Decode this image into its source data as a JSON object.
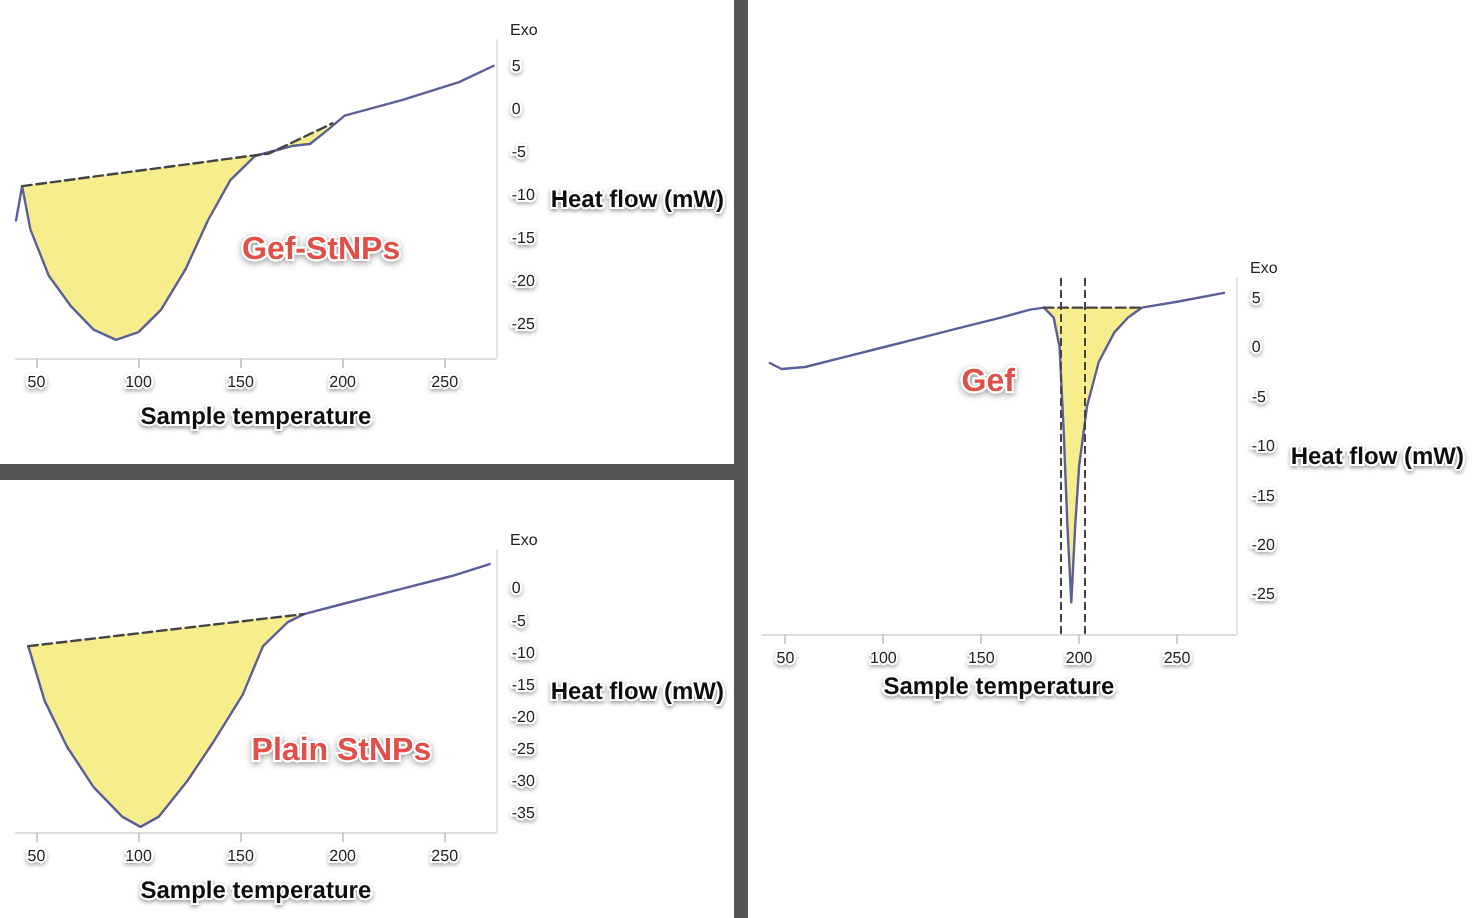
{
  "chart_data": [
    {
      "type": "line",
      "title": "Gef-StNPs",
      "xlabel": "Sample temperature",
      "ylabel": "Heat flow (mW)",
      "annotations": [
        "Exo"
      ],
      "xlim": [
        40,
        275
      ],
      "ylim": [
        -29,
        8
      ],
      "xticks": [
        50,
        100,
        150,
        200,
        250
      ],
      "yticks": [
        5,
        0,
        -5,
        -10,
        -15,
        -20,
        -25
      ],
      "marker": "none",
      "grid": false,
      "series": [
        {
          "color": "#5a5f9a",
          "x": [
            40,
            43,
            47,
            56,
            67,
            78,
            89,
            100,
            111,
            123,
            134,
            145,
            157,
            168,
            176,
            184,
            193,
            201,
            229,
            257,
            274
          ],
          "values": [
            -13,
            -9,
            -14,
            -19.4,
            -23,
            -25.7,
            -26.9,
            -26,
            -23.4,
            -18.7,
            -13,
            -8.3,
            -5.5,
            -4.8,
            -4.3,
            -4.1,
            -2.4,
            -0.8,
            1,
            3.1,
            5
          ],
          "lower": [
            null,
            -9,
            -14,
            -19.4,
            -23,
            -25.7,
            -26.9,
            -26,
            -23.4,
            -18.7,
            -13,
            -8.3,
            -5.5,
            -4.8,
            -4.3,
            -4.1,
            -2.4,
            null,
            null,
            null,
            null
          ],
          "upper": [
            null,
            -9,
            -8.9,
            -8.6,
            -8.2,
            -7.9,
            -7.6,
            -7.2,
            -6.9,
            -6.5,
            -6.1,
            -5.8,
            -5.4,
            -4.7,
            -3.8,
            -2.9,
            -1.9,
            null,
            null,
            null,
            null
          ]
        },
        {
          "color": "#444444",
          "line_style": "dashed",
          "x": [
            43,
            164,
            195
          ],
          "values": [
            -9,
            -5.2,
            -1.7
          ]
        }
      ]
    },
    {
      "type": "line",
      "title": "Plain StNPs",
      "xlabel": "Sample temperature",
      "ylabel": "Heat flow (mW)",
      "annotations": [
        "Exo"
      ],
      "xlim": [
        40,
        275
      ],
      "ylim": [
        -38,
        6
      ],
      "xticks": [
        50,
        100,
        150,
        200,
        250
      ],
      "yticks": [
        0,
        -5,
        -10,
        -15,
        -20,
        -25,
        -30,
        -35
      ],
      "marker": "none",
      "grid": false,
      "series": [
        {
          "color": "#5a5f9a",
          "x": [
            46,
            54,
            65,
            78,
            92,
            101,
            110,
            124,
            137,
            151,
            161,
            173,
            181,
            199,
            226,
            253,
            272
          ],
          "values": [
            -9,
            -17.5,
            -24.7,
            -31,
            -35.6,
            -37.2,
            -35.6,
            -30,
            -23.8,
            -16.6,
            -9,
            -5.3,
            -4,
            -2.5,
            -0.3,
            1.9,
            3.8
          ],
          "lower": [
            -9,
            -17.5,
            -24.7,
            -31,
            -35.6,
            -37.2,
            -35.6,
            -30,
            -23.8,
            -16.6,
            -9,
            -5.3,
            -4,
            null,
            null,
            null,
            null
          ],
          "upper": [
            -9,
            -8.7,
            -8.3,
            -7.8,
            -7.3,
            -7,
            -6.6,
            -6.1,
            -5.6,
            -5.1,
            -4.7,
            -4.3,
            -4,
            null,
            null,
            null,
            null
          ]
        },
        {
          "color": "#444444",
          "line_style": "dashed",
          "x": [
            46,
            181
          ],
          "values": [
            -9,
            -4
          ]
        }
      ]
    },
    {
      "type": "line",
      "title": "Gef",
      "xlabel": "Sample temperature",
      "ylabel": "Heat flow (mW)",
      "annotations": [
        "Exo"
      ],
      "xlim": [
        38,
        280
      ],
      "ylim": [
        -29,
        7
      ],
      "xticks": [
        50,
        100,
        150,
        200,
        250
      ],
      "yticks": [
        5,
        0,
        -5,
        -10,
        -15,
        -20,
        -25
      ],
      "marker": "none",
      "grid": false,
      "ref_lines": [
        {
          "axis": "x",
          "value": 190,
          "color": "#444444",
          "line_style": "dashed"
        },
        {
          "axis": "x",
          "value": 203,
          "color": "#444444",
          "line_style": "dashed"
        }
      ],
      "series": [
        {
          "color": "#5a5f9a",
          "x": [
            42,
            48,
            60,
            80,
            100,
            120,
            140,
            160,
            175,
            182,
            187,
            190,
            192,
            194,
            196,
            198,
            200,
            204,
            210,
            218,
            225,
            232,
            250,
            274
          ],
          "values": [
            -1.6,
            -2.2,
            -2,
            -1,
            0,
            1,
            2,
            3,
            3.8,
            4,
            3,
            0,
            -8,
            -18,
            -25.8,
            -18,
            -12,
            -6,
            -1.5,
            1.5,
            3,
            4,
            4.6,
            5.5
          ],
          "lower": [
            null,
            null,
            null,
            null,
            null,
            null,
            null,
            null,
            null,
            4,
            3,
            0,
            -8,
            -18,
            -25.8,
            -18,
            -12,
            -6,
            -1.5,
            1.5,
            3,
            4,
            null,
            null
          ],
          "upper": [
            null,
            null,
            null,
            null,
            null,
            null,
            null,
            null,
            null,
            4,
            4,
            4,
            4,
            4,
            4,
            4,
            4,
            4,
            4,
            4,
            4,
            4,
            null,
            null
          ]
        },
        {
          "color": "#444444",
          "line_style": "dashed",
          "x": [
            182,
            232
          ],
          "values": [
            4,
            4
          ]
        }
      ]
    }
  ]
}
